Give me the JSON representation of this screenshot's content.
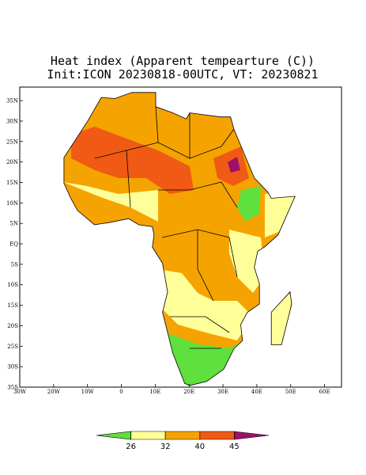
{
  "title": "Heat index (Apparent tempearture (C))",
  "subtitle": "Init:ICON 20230818-00UTC, VT: 20230821",
  "map": {
    "xlim": [
      -30,
      65
    ],
    "ylim": [
      -35,
      38.3
    ],
    "xticks": [
      {
        "value": -30,
        "label": "30W"
      },
      {
        "value": -20,
        "label": "20W"
      },
      {
        "value": -10,
        "label": "10W"
      },
      0,
      {
        "value": 10,
        "label": "10E"
      },
      {
        "value": 20,
        "label": "20E"
      },
      {
        "value": 30,
        "label": "30E"
      },
      {
        "value": 40,
        "label": "40E"
      },
      {
        "value": 50,
        "label": "50E"
      },
      {
        "value": 60,
        "label": "60E"
      }
    ],
    "yticks": [
      {
        "value": 35,
        "label": "35N"
      },
      {
        "value": 30,
        "label": "30N"
      },
      {
        "value": 25,
        "label": "25N"
      },
      {
        "value": 20,
        "label": "20N"
      },
      {
        "value": 15,
        "label": "15N"
      },
      {
        "value": 10,
        "label": "10N"
      },
      {
        "value": 5,
        "label": "5N"
      },
      {
        "value": 0,
        "label": "EQ"
      },
      {
        "value": -5,
        "label": "5S"
      },
      {
        "value": -10,
        "label": "10S"
      },
      {
        "value": -15,
        "label": "15S"
      },
      {
        "value": -20,
        "label": "20S"
      },
      {
        "value": -25,
        "label": "25S"
      },
      {
        "value": -30,
        "label": "30S"
      },
      {
        "value": -35,
        "label": "35S"
      }
    ]
  },
  "colorbar": {
    "ticks": [
      26,
      32,
      40,
      45
    ],
    "colors": [
      "#5fe03c",
      "#ffff99",
      "#f5a300",
      "#f05a14",
      "#a0106a"
    ]
  }
}
